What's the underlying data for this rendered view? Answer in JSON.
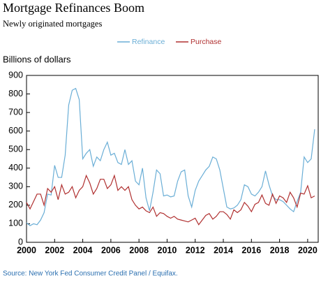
{
  "chart_data": {
    "type": "line",
    "title": "Mortgage Refinances Boom",
    "subtitle": "Newly originated mortgages",
    "y_label": "Billions of dollars",
    "source": "Source: New York Fed Consumer Credit Panel / Equifax.",
    "x": [
      2000,
      2000.25,
      2000.5,
      2000.75,
      2001,
      2001.25,
      2001.5,
      2001.75,
      2002,
      2002.25,
      2002.5,
      2002.75,
      2003,
      2003.25,
      2003.5,
      2003.75,
      2004,
      2004.25,
      2004.5,
      2004.75,
      2005,
      2005.25,
      2005.5,
      2005.75,
      2006,
      2006.25,
      2006.5,
      2006.75,
      2007,
      2007.25,
      2007.5,
      2007.75,
      2008,
      2008.25,
      2008.5,
      2008.75,
      2009,
      2009.25,
      2009.5,
      2009.75,
      2010,
      2010.25,
      2010.5,
      2010.75,
      2011,
      2011.25,
      2011.5,
      2011.75,
      2012,
      2012.25,
      2012.5,
      2012.75,
      2013,
      2013.25,
      2013.5,
      2013.75,
      2014,
      2014.25,
      2014.5,
      2014.75,
      2015,
      2015.25,
      2015.5,
      2015.75,
      2016,
      2016.25,
      2016.5,
      2016.75,
      2017,
      2017.25,
      2017.5,
      2017.75,
      2018,
      2018.25,
      2018.5,
      2018.75,
      2019,
      2019.25,
      2019.5,
      2019.75,
      2020,
      2020.25,
      2020.5
    ],
    "series": [
      {
        "name": "Refinance",
        "color": "#6aaed6",
        "values": [
          105,
          90,
          100,
          95,
          120,
          160,
          260,
          255,
          415,
          350,
          350,
          470,
          740,
          820,
          830,
          770,
          450,
          480,
          500,
          410,
          460,
          440,
          500,
          540,
          470,
          480,
          430,
          420,
          500,
          420,
          440,
          330,
          310,
          400,
          240,
          170,
          270,
          390,
          370,
          250,
          255,
          245,
          250,
          330,
          380,
          390,
          250,
          190,
          280,
          330,
          360,
          390,
          410,
          460,
          450,
          390,
          290,
          190,
          180,
          185,
          200,
          230,
          310,
          300,
          260,
          250,
          270,
          300,
          385,
          310,
          250,
          230,
          230,
          220,
          200,
          180,
          165,
          220,
          270,
          460,
          430,
          450,
          610
        ]
      },
      {
        "name": "Purchase",
        "color": "#b03030",
        "values": [
          215,
          180,
          220,
          260,
          260,
          200,
          290,
          270,
          300,
          230,
          310,
          260,
          270,
          300,
          240,
          280,
          300,
          360,
          320,
          260,
          290,
          340,
          340,
          290,
          310,
          360,
          280,
          300,
          280,
          300,
          230,
          200,
          180,
          190,
          170,
          160,
          190,
          140,
          160,
          155,
          140,
          130,
          140,
          125,
          120,
          115,
          110,
          120,
          130,
          95,
          120,
          145,
          155,
          125,
          140,
          165,
          165,
          150,
          125,
          175,
          160,
          175,
          215,
          195,
          165,
          205,
          215,
          255,
          210,
          200,
          260,
          210,
          250,
          240,
          215,
          270,
          240,
          190,
          265,
          260,
          305,
          240,
          250
        ]
      }
    ],
    "xlim": [
      2000,
      2020.75
    ],
    "xticks": [
      2000,
      2002,
      2004,
      2006,
      2008,
      2010,
      2012,
      2014,
      2016,
      2018,
      2020
    ],
    "ylim": [
      0,
      900
    ],
    "yticks": [
      0,
      100,
      200,
      300,
      400,
      500,
      600,
      700,
      800,
      900
    ],
    "legend": "top"
  }
}
